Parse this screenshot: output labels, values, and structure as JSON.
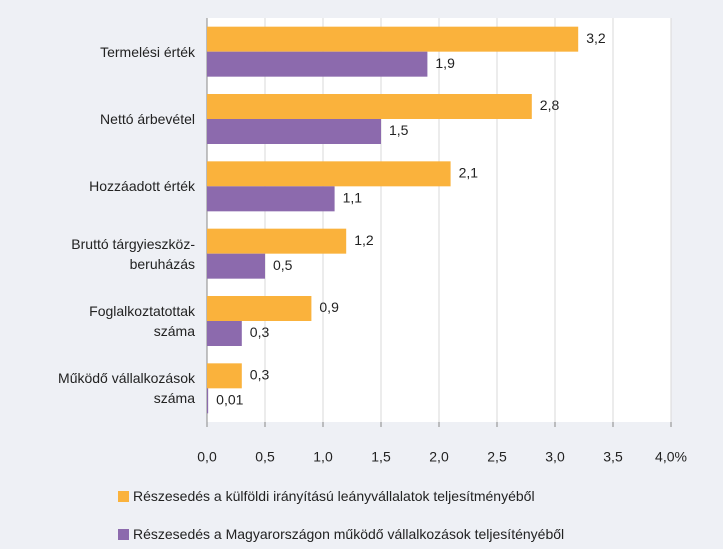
{
  "chart_data": {
    "type": "hbar",
    "categories": [
      "Termelési érték",
      "Nettó árbevétel",
      "Hozzáadott érték",
      "Bruttó tárgyieszköz-\nberuházás",
      "Foglalkoztatottak\nszáma",
      "Működő vállalkozások\nszáma"
    ],
    "series": [
      {
        "name": "Részesedés a külföldi irányítású leányvállalatok teljesítményéből",
        "color": "#fab23c",
        "values": [
          3.2,
          2.8,
          2.1,
          1.2,
          0.9,
          0.3
        ],
        "value_labels": [
          "3,2",
          "2,8",
          "2,1",
          "1,2",
          "0,9",
          "0,3"
        ]
      },
      {
        "name": "Részesedés a Magyarországon működő vállalkozások teljesítényéből",
        "color": "#8c6aad",
        "values": [
          1.9,
          1.5,
          1.1,
          0.5,
          0.3,
          0.01
        ],
        "value_labels": [
          "1,9",
          "1,5",
          "1,1",
          "0,5",
          "0,3",
          "0,01"
        ]
      }
    ],
    "xlim": [
      0,
      4
    ],
    "xticks": [
      {
        "value": 0,
        "label": "0,0"
      },
      {
        "value": 0.5,
        "label": "0,5"
      },
      {
        "value": 1,
        "label": "1,0"
      },
      {
        "value": 1.5,
        "label": "1,5"
      },
      {
        "value": 2,
        "label": "2,0"
      },
      {
        "value": 2.5,
        "label": "2,5"
      },
      {
        "value": 3,
        "label": "3,0"
      },
      {
        "value": 3.5,
        "label": "3,5"
      },
      {
        "value": 4,
        "label": "4,0%"
      }
    ],
    "grid": true
  }
}
